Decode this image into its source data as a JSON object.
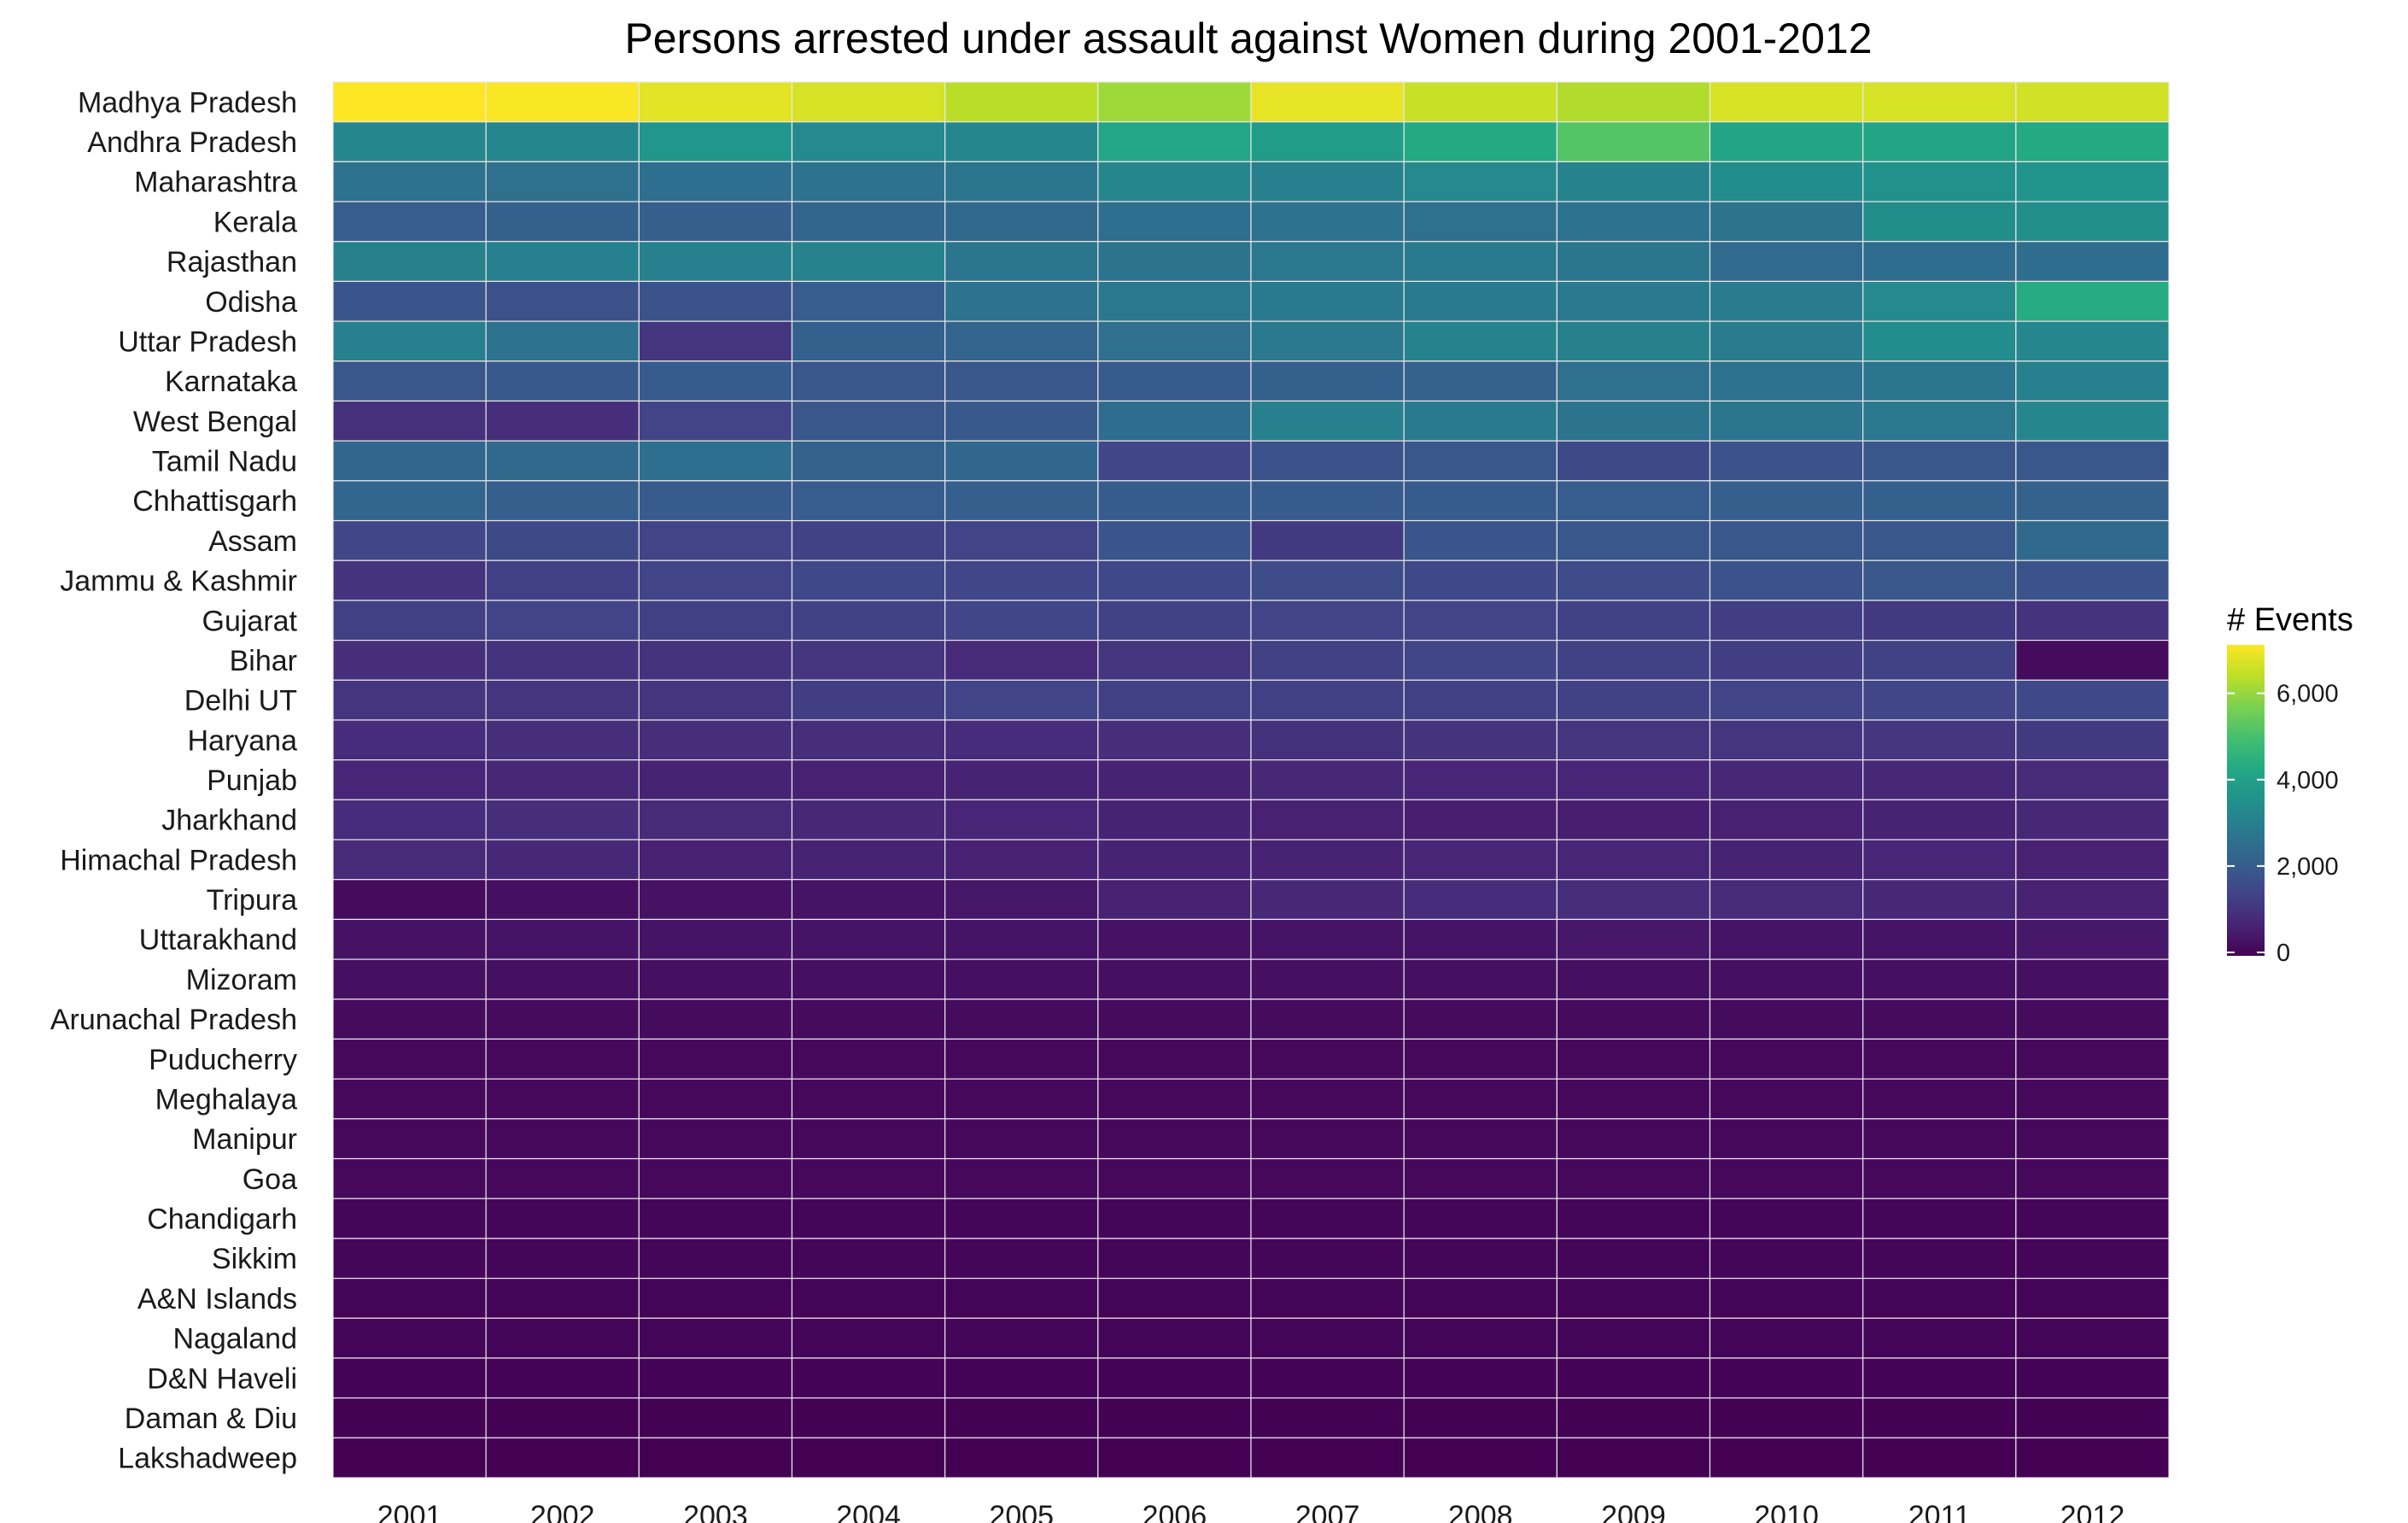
{
  "chart_data": {
    "type": "heatmap",
    "title": "Persons arrested under assault against Women during 2001-2012",
    "x": [
      "2001",
      "2002",
      "2003",
      "2004",
      "2005",
      "2006",
      "2007",
      "2008",
      "2009",
      "2010",
      "2011",
      "2012"
    ],
    "y": [
      "Madhya Pradesh",
      "Andhra Pradesh",
      "Maharashtra",
      "Kerala",
      "Rajasthan",
      "Odisha",
      "Uttar Pradesh",
      "Karnataka",
      "West Bengal",
      "Tamil Nadu",
      "Chhattisgarh",
      "Assam",
      "Jammu & Kashmir",
      "Gujarat",
      "Bihar",
      "Delhi UT",
      "Haryana",
      "Punjab",
      "Jharkhand",
      "Himachal Pradesh",
      "Tripura",
      "Uttarakhand",
      "Mizoram",
      "Arunachal Pradesh",
      "Puducherry",
      "Meghalaya",
      "Manipur",
      "Goa",
      "Chandigarh",
      "Sikkim",
      "A&N Islands",
      "Nagaland",
      "D&N Haveli",
      "Daman & Diu",
      "Lakshadweep"
    ],
    "values": [
      [
        7200,
        7150,
        6900,
        6750,
        6450,
        6150,
        6950,
        6600,
        6350,
        6800,
        6750,
        6700
      ],
      [
        3300,
        3300,
        3750,
        3400,
        3300,
        4250,
        3950,
        4350,
        5250,
        4200,
        4200,
        4350
      ],
      [
        2700,
        2650,
        2600,
        2700,
        2800,
        3300,
        3100,
        3400,
        3200,
        3450,
        3600,
        3700
      ],
      [
        2100,
        2200,
        2150,
        2350,
        2450,
        2600,
        2700,
        2650,
        2700,
        2750,
        3500,
        3550
      ],
      [
        3150,
        3100,
        3100,
        3200,
        2800,
        2750,
        2850,
        2950,
        2800,
        2500,
        2550,
        2550
      ],
      [
        1900,
        1750,
        1850,
        2100,
        2700,
        2850,
        2950,
        2950,
        2900,
        3000,
        3400,
        4400
      ],
      [
        3100,
        2700,
        1100,
        2200,
        2300,
        2650,
        2900,
        3200,
        3150,
        3000,
        3450,
        3300
      ],
      [
        1950,
        2000,
        2050,
        1950,
        1950,
        2050,
        2200,
        2250,
        2650,
        2700,
        2800,
        3100
      ],
      [
        1000,
        950,
        1450,
        1950,
        2000,
        2550,
        3100,
        2950,
        2750,
        2800,
        2850,
        3300
      ],
      [
        2400,
        2450,
        2600,
        2250,
        2400,
        1500,
        1800,
        1950,
        1600,
        1850,
        1950,
        1950
      ],
      [
        2350,
        2150,
        2050,
        2100,
        2150,
        2050,
        2050,
        2050,
        2100,
        2150,
        2200,
        2250
      ],
      [
        1500,
        1600,
        1450,
        1400,
        1450,
        1900,
        1200,
        1900,
        1950,
        1950,
        1950,
        2450
      ],
      [
        1050,
        1350,
        1450,
        1550,
        1500,
        1550,
        1650,
        1550,
        1650,
        1850,
        1950,
        1850
      ],
      [
        1350,
        1450,
        1350,
        1400,
        1500,
        1400,
        1450,
        1450,
        1400,
        1300,
        1200,
        1050
      ],
      [
        950,
        1050,
        1050,
        1150,
        850,
        1100,
        1350,
        1500,
        1400,
        1300,
        1400,
        200
      ],
      [
        1100,
        1100,
        1100,
        1300,
        1450,
        1350,
        1350,
        1350,
        1400,
        1450,
        1500,
        1550
      ],
      [
        900,
        950,
        950,
        950,
        900,
        950,
        1000,
        1050,
        1100,
        1100,
        1150,
        1200
      ],
      [
        750,
        800,
        700,
        650,
        700,
        700,
        800,
        750,
        750,
        800,
        800,
        850
      ],
      [
        900,
        950,
        850,
        800,
        750,
        700,
        650,
        600,
        600,
        650,
        700,
        800
      ],
      [
        850,
        800,
        650,
        700,
        650,
        700,
        700,
        750,
        750,
        700,
        750,
        650
      ],
      [
        200,
        300,
        350,
        400,
        450,
        650,
        800,
        900,
        950,
        850,
        800,
        650
      ],
      [
        350,
        400,
        400,
        400,
        400,
        350,
        400,
        400,
        450,
        400,
        400,
        450
      ],
      [
        300,
        300,
        300,
        300,
        300,
        300,
        300,
        300,
        300,
        300,
        300,
        300
      ],
      [
        200,
        200,
        200,
        200,
        200,
        200,
        200,
        200,
        200,
        200,
        200,
        200
      ],
      [
        150,
        150,
        150,
        150,
        150,
        150,
        150,
        150,
        150,
        150,
        150,
        150
      ],
      [
        150,
        150,
        150,
        150,
        150,
        150,
        150,
        150,
        150,
        150,
        150,
        150
      ],
      [
        150,
        150,
        150,
        150,
        150,
        150,
        150,
        150,
        150,
        150,
        150,
        150
      ],
      [
        150,
        150,
        150,
        150,
        150,
        150,
        150,
        150,
        150,
        150,
        150,
        150
      ],
      [
        100,
        100,
        100,
        100,
        100,
        100,
        100,
        100,
        100,
        100,
        100,
        100
      ],
      [
        100,
        100,
        100,
        100,
        100,
        100,
        100,
        100,
        100,
        100,
        100,
        100
      ],
      [
        80,
        80,
        80,
        80,
        80,
        80,
        80,
        80,
        80,
        80,
        80,
        80
      ],
      [
        60,
        60,
        60,
        60,
        60,
        60,
        60,
        60,
        60,
        60,
        60,
        60
      ],
      [
        40,
        40,
        40,
        40,
        40,
        40,
        40,
        40,
        40,
        40,
        40,
        40
      ],
      [
        30,
        30,
        30,
        30,
        30,
        30,
        30,
        30,
        30,
        30,
        30,
        30
      ],
      [
        10,
        10,
        10,
        10,
        10,
        10,
        10,
        10,
        10,
        10,
        10,
        10
      ]
    ],
    "color_scale": "viridis",
    "zlim": [
      0,
      7200
    ],
    "legend": {
      "title": "# Events",
      "ticks": [
        0,
        2000,
        4000,
        6000
      ],
      "tick_labels": [
        "0",
        "2,000",
        "4,000",
        "6,000"
      ],
      "position": "right"
    },
    "grid_lines": "#e8e8e8"
  }
}
